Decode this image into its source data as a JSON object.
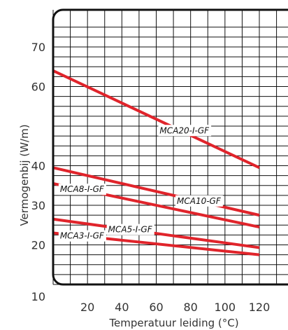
{
  "chart_data": {
    "type": "line",
    "title": "",
    "xlabel": "Temperatuur leiding (°C)",
    "ylabel": "Vermogenbij (W/m)",
    "xlim": [
      0,
      130
    ],
    "ylim": [
      10,
      75
    ],
    "x_ticks": [
      20,
      40,
      60,
      80,
      100,
      120
    ],
    "y_ticks": [
      10,
      20,
      30,
      40,
      60,
      70
    ],
    "grid": true,
    "line_color": "#e0242b",
    "series": [
      {
        "name": "MCA20-I-GF",
        "x": [
          0,
          120
        ],
        "y": [
          64,
          39.5
        ]
      },
      {
        "name": "MCA10-GF",
        "x": [
          0,
          120
        ],
        "y": [
          39.5,
          27.5
        ]
      },
      {
        "name": "MCA8-I-GF",
        "x": [
          0,
          120
        ],
        "y": [
          35.5,
          24.5
        ]
      },
      {
        "name": "MCA5-I-GF",
        "x": [
          0,
          120
        ],
        "y": [
          26.5,
          19.3
        ]
      },
      {
        "name": "MCA3-I-GF",
        "x": [
          0,
          120
        ],
        "y": [
          23,
          17.5
        ]
      }
    ]
  }
}
